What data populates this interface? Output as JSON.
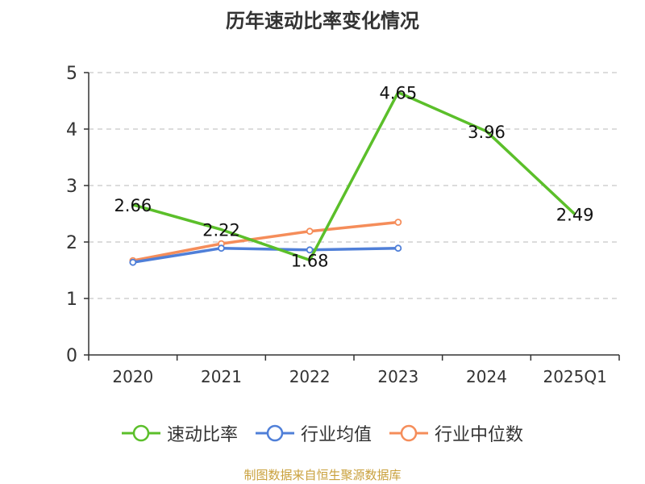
{
  "title": "历年速动比率变化情况",
  "source": "制图数据来自恒生聚源数据库",
  "chart_data": {
    "type": "line",
    "title": "历年速动比率变化情况",
    "categories": [
      "2020",
      "2021",
      "2022",
      "2023",
      "2024",
      "2025Q1"
    ],
    "ylim": [
      0,
      5
    ],
    "yticks": [
      "0",
      "1",
      "2",
      "3",
      "4",
      "5"
    ],
    "grid": true,
    "legend_position": "bottom",
    "series": [
      {
        "name": "速动比率",
        "color": "#5bbf2a",
        "values": [
          2.66,
          2.22,
          1.68,
          4.65,
          3.96,
          2.49
        ],
        "labels": [
          "2.66",
          "2.22",
          "1.68",
          "4.65",
          "3.96",
          "2.49"
        ]
      },
      {
        "name": "行业均值",
        "color": "#4f7fd8",
        "values": [
          1.64,
          1.89,
          1.86,
          1.89,
          null,
          null
        ]
      },
      {
        "name": "行业中位数",
        "color": "#f58d5a",
        "values": [
          1.67,
          1.97,
          2.19,
          2.35,
          null,
          null
        ]
      }
    ]
  }
}
